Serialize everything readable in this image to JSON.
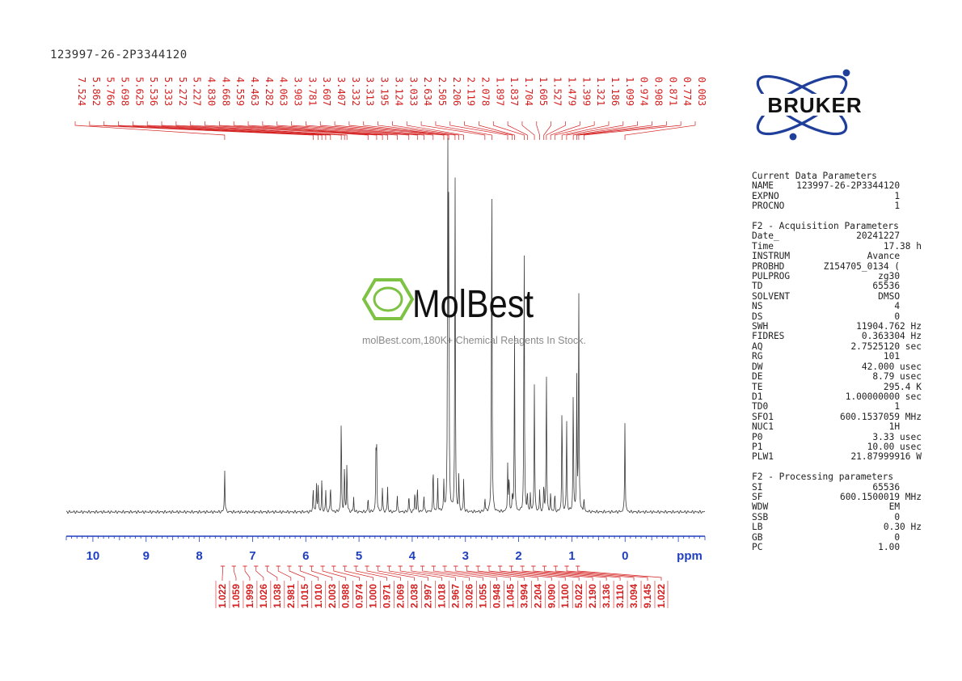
{
  "title": "123997-26-2P3344120",
  "brand": {
    "logo_text": "BRUKER",
    "color": "#1f3f9a"
  },
  "watermark": {
    "name": "MolBest",
    "tagline": "molBest.com,180K+ Chemical Reagents In Stock.",
    "hex_color": "#7dc242"
  },
  "params": {
    "sections": [
      {
        "header": "Current Data Parameters",
        "rows": [
          [
            "NAME",
            "123997-26-2P3344120"
          ],
          [
            "EXPNO",
            "1"
          ],
          [
            "PROCNO",
            "1"
          ]
        ]
      },
      {
        "header": "F2 - Acquisition Parameters",
        "rows": [
          [
            "Date_",
            "20241227"
          ],
          [
            "Time",
            "17.38 h"
          ],
          [
            "INSTRUM",
            "Avance"
          ],
          [
            "PROBHD",
            "Z154705_0134 ("
          ],
          [
            "PULPROG",
            "zg30"
          ],
          [
            "TD",
            "65536"
          ],
          [
            "SOLVENT",
            "DMSO"
          ],
          [
            "NS",
            "4"
          ],
          [
            "DS",
            "0"
          ],
          [
            "SWH",
            "11904.762 Hz"
          ],
          [
            "FIDRES",
            "0.363304 Hz"
          ],
          [
            "AQ",
            "2.7525120 sec"
          ],
          [
            "RG",
            "101"
          ],
          [
            "DW",
            "42.000 usec"
          ],
          [
            "DE",
            "8.79 usec"
          ],
          [
            "TE",
            "295.4 K"
          ],
          [
            "D1",
            "1.00000000 sec"
          ],
          [
            "TD0",
            "1"
          ],
          [
            "SFO1",
            "600.1537059 MHz"
          ],
          [
            "NUC1",
            "1H"
          ],
          [
            "P0",
            "3.33 usec"
          ],
          [
            "P1",
            "10.00 usec"
          ],
          [
            "PLW1",
            "21.87999916 W"
          ]
        ]
      },
      {
        "header": "F2 - Processing parameters",
        "rows": [
          [
            "SI",
            "65536"
          ],
          [
            "SF",
            "600.1500019 MHz"
          ],
          [
            "WDW",
            "EM"
          ],
          [
            "SSB",
            "0"
          ],
          [
            "LB",
            "0.30 Hz"
          ],
          [
            "GB",
            "0"
          ],
          [
            "PC",
            "1.00"
          ]
        ]
      }
    ]
  },
  "chart_data": {
    "type": "line",
    "xlabel": "ppm",
    "x_reversed": true,
    "xlim": [
      10.5,
      -1.5
    ],
    "x_ticks": [
      10,
      9,
      8,
      7,
      6,
      5,
      4,
      3,
      2,
      1,
      0
    ],
    "peak_labels": [
      "7.524",
      "5.862",
      "5.766",
      "5.698",
      "5.625",
      "5.536",
      "5.333",
      "5.272",
      "5.227",
      "4.830",
      "4.668",
      "4.559",
      "4.463",
      "4.282",
      "4.063",
      "3.903",
      "3.781",
      "3.607",
      "3.407",
      "3.332",
      "3.313",
      "3.195",
      "3.124",
      "3.033",
      "2.634",
      "2.505",
      "2.206",
      "2.119",
      "2.078",
      "1.897",
      "1.837",
      "1.704",
      "1.605",
      "1.527",
      "1.479",
      "1.399",
      "1.321",
      "1.186",
      "1.099",
      "0.974",
      "0.908",
      "0.871",
      "0.774",
      "0.003"
    ],
    "integrals": [
      "1.022",
      "1.059",
      "1.999",
      "1.026",
      "1.038",
      "2.981",
      "1.015",
      "1.010",
      "2.003",
      "0.988",
      "0.974",
      "1.000",
      "0.971",
      "2.069",
      "2.038",
      "2.997",
      "1.018",
      "2.967",
      "3.026",
      "1.055",
      "0.948",
      "1.045",
      "3.994",
      "2.204",
      "9.090",
      "1.100",
      "5.022",
      "2.190",
      "3.136",
      "3.110",
      "3.094",
      "9.145",
      "1.022"
    ],
    "peaks": [
      {
        "ppm": 7.524,
        "h": 0.12
      },
      {
        "ppm": 5.862,
        "h": 0.07
      },
      {
        "ppm": 5.8,
        "h": 0.08
      },
      {
        "ppm": 5.766,
        "h": 0.08
      },
      {
        "ppm": 5.698,
        "h": 0.09
      },
      {
        "ppm": 5.625,
        "h": 0.06
      },
      {
        "ppm": 5.536,
        "h": 0.08
      },
      {
        "ppm": 5.333,
        "h": 0.27
      },
      {
        "ppm": 5.272,
        "h": 0.13
      },
      {
        "ppm": 5.227,
        "h": 0.14
      },
      {
        "ppm": 5.1,
        "h": 0.04
      },
      {
        "ppm": 4.83,
        "h": 0.04
      },
      {
        "ppm": 4.68,
        "h": 0.17
      },
      {
        "ppm": 4.668,
        "h": 0.16
      },
      {
        "ppm": 4.559,
        "h": 0.07
      },
      {
        "ppm": 4.463,
        "h": 0.07
      },
      {
        "ppm": 4.282,
        "h": 0.05
      },
      {
        "ppm": 4.063,
        "h": 0.05
      },
      {
        "ppm": 3.95,
        "h": 0.06
      },
      {
        "ppm": 3.903,
        "h": 0.07
      },
      {
        "ppm": 3.781,
        "h": 0.05
      },
      {
        "ppm": 3.607,
        "h": 0.13
      },
      {
        "ppm": 3.52,
        "h": 0.09
      },
      {
        "ppm": 3.407,
        "h": 0.08
      },
      {
        "ppm": 3.332,
        "h": 1.0
      },
      {
        "ppm": 3.313,
        "h": 0.86
      },
      {
        "ppm": 3.195,
        "h": 0.95
      },
      {
        "ppm": 3.124,
        "h": 0.1
      },
      {
        "ppm": 3.033,
        "h": 0.09
      },
      {
        "ppm": 2.634,
        "h": 0.04
      },
      {
        "ppm": 2.505,
        "h": 1.0
      },
      {
        "ppm": 2.206,
        "h": 0.13
      },
      {
        "ppm": 2.18,
        "h": 0.1
      },
      {
        "ppm": 2.119,
        "h": 0.05
      },
      {
        "ppm": 2.078,
        "h": 0.49
      },
      {
        "ppm": 1.897,
        "h": 0.78
      },
      {
        "ppm": 1.837,
        "h": 0.05
      },
      {
        "ppm": 1.78,
        "h": 0.05
      },
      {
        "ppm": 1.704,
        "h": 0.36
      },
      {
        "ppm": 1.605,
        "h": 0.06
      },
      {
        "ppm": 1.527,
        "h": 0.08
      },
      {
        "ppm": 1.479,
        "h": 0.4
      },
      {
        "ppm": 1.399,
        "h": 0.05
      },
      {
        "ppm": 1.321,
        "h": 0.05
      },
      {
        "ppm": 1.186,
        "h": 0.31
      },
      {
        "ppm": 1.099,
        "h": 0.26
      },
      {
        "ppm": 0.974,
        "h": 0.34
      },
      {
        "ppm": 0.908,
        "h": 0.36
      },
      {
        "ppm": 0.871,
        "h": 0.62
      },
      {
        "ppm": 0.774,
        "h": 0.04
      },
      {
        "ppm": 0.003,
        "h": 0.25
      }
    ]
  }
}
